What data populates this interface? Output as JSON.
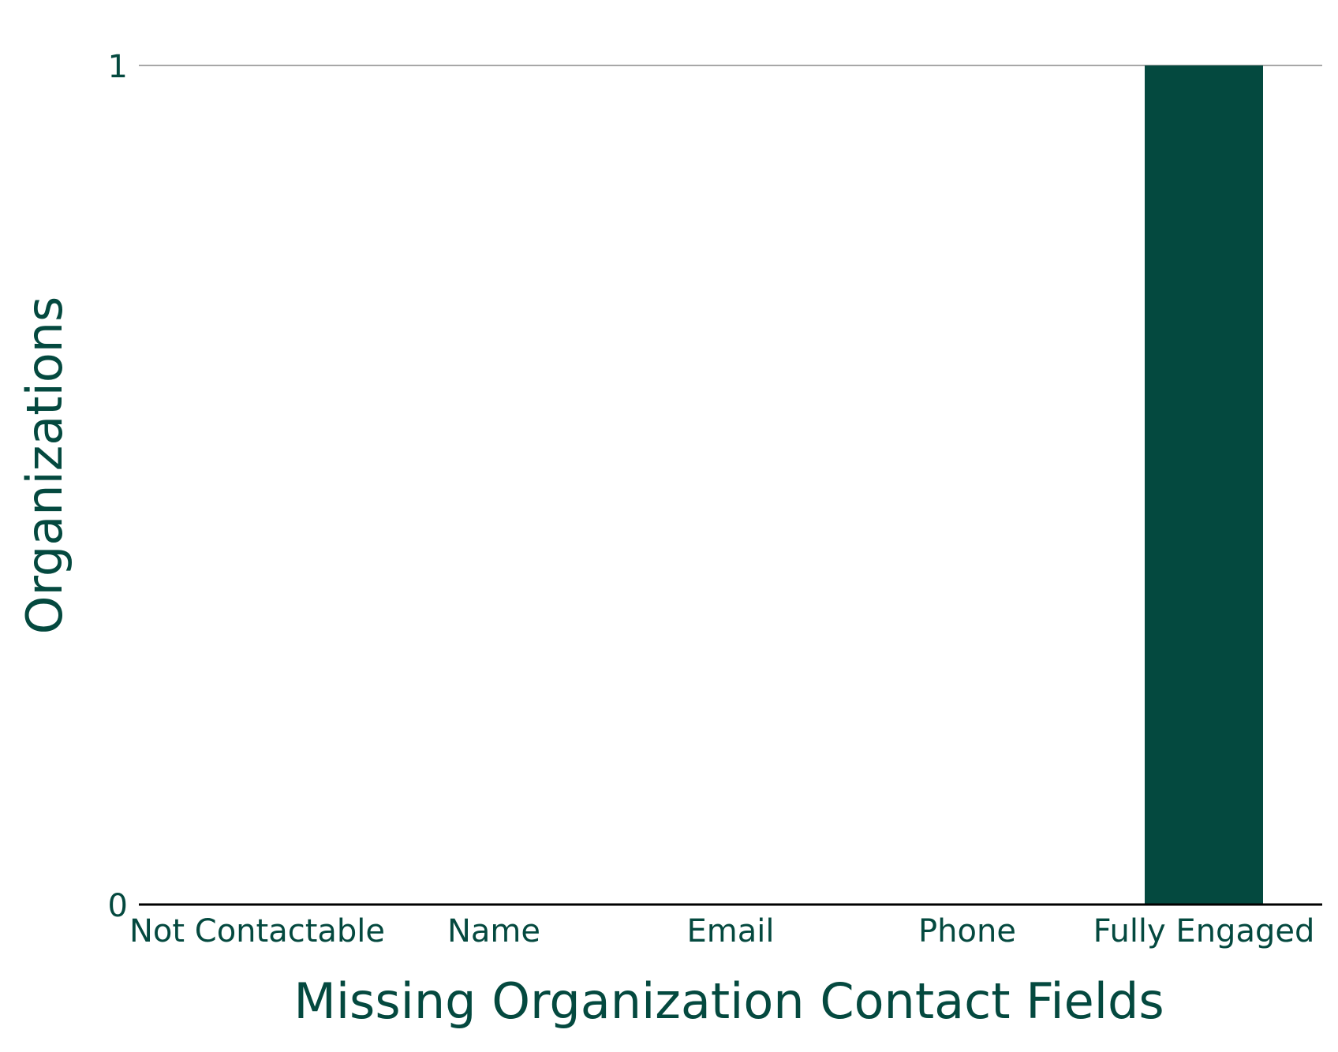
{
  "chart_data": {
    "type": "bar",
    "categories": [
      "Not Contactable",
      "Name",
      "Email",
      "Phone",
      "Fully Engaged"
    ],
    "values": [
      0,
      0,
      0,
      0,
      1
    ],
    "title": "",
    "xlabel": "Missing Organization Contact Fields",
    "ylabel": "Organizations",
    "ylim": [
      0,
      1
    ],
    "yticks": [
      0,
      1
    ],
    "grid": true,
    "legend": "none",
    "colors": {
      "bar": "#04493F",
      "text": "#04493F",
      "gridline": "#8a8a8a",
      "baseline": "#000000"
    }
  }
}
